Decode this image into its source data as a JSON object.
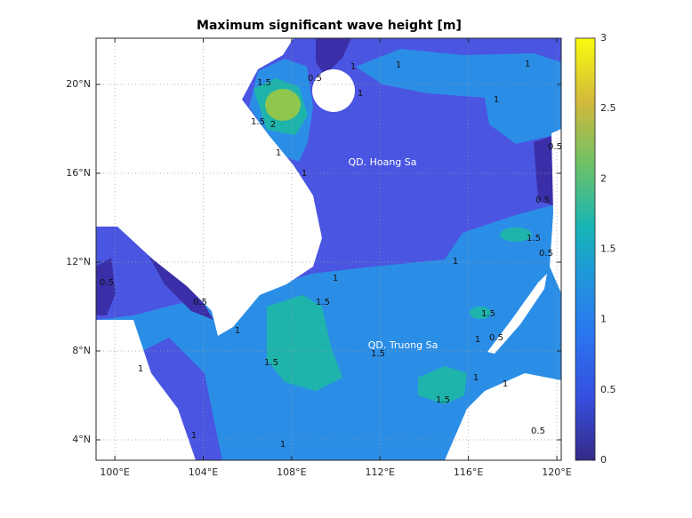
{
  "title": "Maximum significant wave height [m]",
  "xaxis": {
    "lim": [
      99.15,
      120.2
    ],
    "ticks": [
      {
        "value": 100,
        "label": "100°E"
      },
      {
        "value": 104,
        "label": "104°E"
      },
      {
        "value": 108,
        "label": "108°E"
      },
      {
        "value": 112,
        "label": "112°E"
      },
      {
        "value": 116,
        "label": "116°E"
      },
      {
        "value": 120,
        "label": "120°E"
      }
    ]
  },
  "yaxis": {
    "lim": [
      3.08,
      22.08
    ],
    "ticks": [
      {
        "value": 4,
        "label": "4°N"
      },
      {
        "value": 8,
        "label": "8°N"
      },
      {
        "value": 12,
        "label": "12°N"
      },
      {
        "value": 16,
        "label": "16°N"
      },
      {
        "value": 20,
        "label": "20°N"
      }
    ]
  },
  "colorbar": {
    "lim": [
      0,
      3
    ],
    "ticks": [
      0,
      0.5,
      1,
      1.5,
      2,
      2.5,
      3
    ]
  },
  "places": [
    "QD. Hoang Sa",
    "QD. Truong Sa"
  ],
  "contour_labels": [
    "1.5",
    "2",
    "1.5",
    "1",
    "1",
    "0.5",
    "1",
    "1",
    "1",
    "1",
    "1",
    "0.5",
    "0.5",
    "1.5",
    "1",
    "0.5",
    "1",
    "1.5",
    "1.5",
    "0.5",
    "0.5",
    "1",
    "1.5",
    "1.5",
    "1",
    "0.5",
    "1",
    "1.5",
    "1",
    "1",
    "1",
    "1",
    "0.5"
  ]
}
